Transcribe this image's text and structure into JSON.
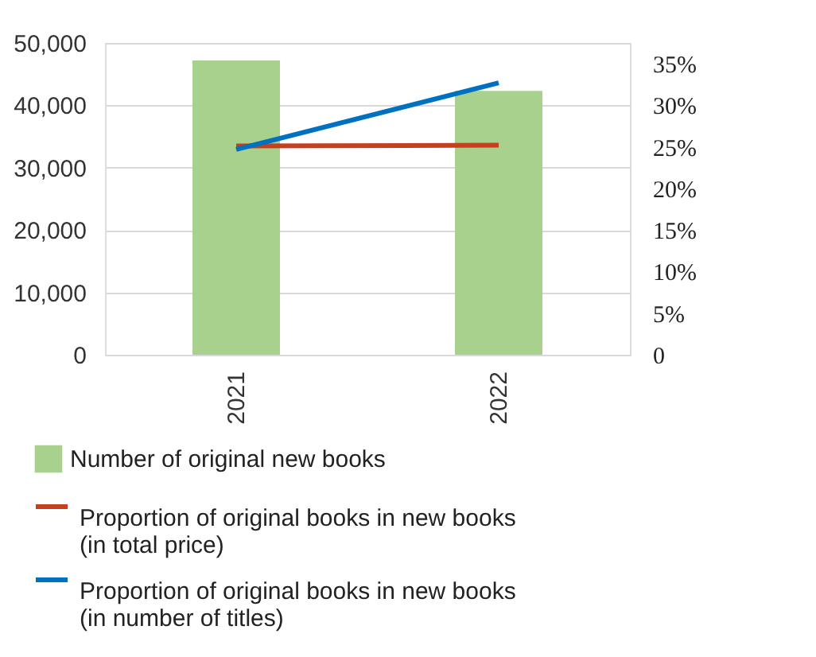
{
  "chart_data": {
    "type": "bar",
    "categories": [
      "2021",
      "2022"
    ],
    "series": [
      {
        "name": "Number of original new books",
        "type": "bar",
        "color": "#a9d18e",
        "values": [
          47200,
          42300
        ]
      },
      {
        "name": "Proportion of original books in new books (in total price)",
        "type": "line",
        "axis": "y2",
        "color": "#c5401e",
        "values": [
          25.1,
          25.2
        ]
      },
      {
        "name": "Proportion of original books in new books (in number of titles)",
        "type": "line",
        "axis": "y2",
        "color": "#0070c0",
        "values": [
          24.7,
          32.7
        ]
      }
    ],
    "ylim": [
      0,
      50000
    ],
    "yticks": [
      {
        "value": 0,
        "label": "0"
      },
      {
        "value": 10000,
        "label": "10,000"
      },
      {
        "value": 20000,
        "label": "20,000"
      },
      {
        "value": 30000,
        "label": "30,000"
      },
      {
        "value": 40000,
        "label": "40,000"
      },
      {
        "value": 50000,
        "label": "50,000"
      }
    ],
    "y2lim": [
      0,
      37.5
    ],
    "y2ticks": [
      0,
      {
        "value": 5,
        "label": "5%"
      },
      {
        "value": 10,
        "label": "10%"
      },
      {
        "value": 15,
        "label": "15%"
      },
      {
        "value": 20,
        "label": "20%"
      },
      {
        "value": 25,
        "label": "25%"
      },
      {
        "value": 30,
        "label": "30%"
      },
      {
        "value": 35,
        "label": "35%"
      }
    ],
    "grid": "y",
    "legend": "bottom"
  }
}
